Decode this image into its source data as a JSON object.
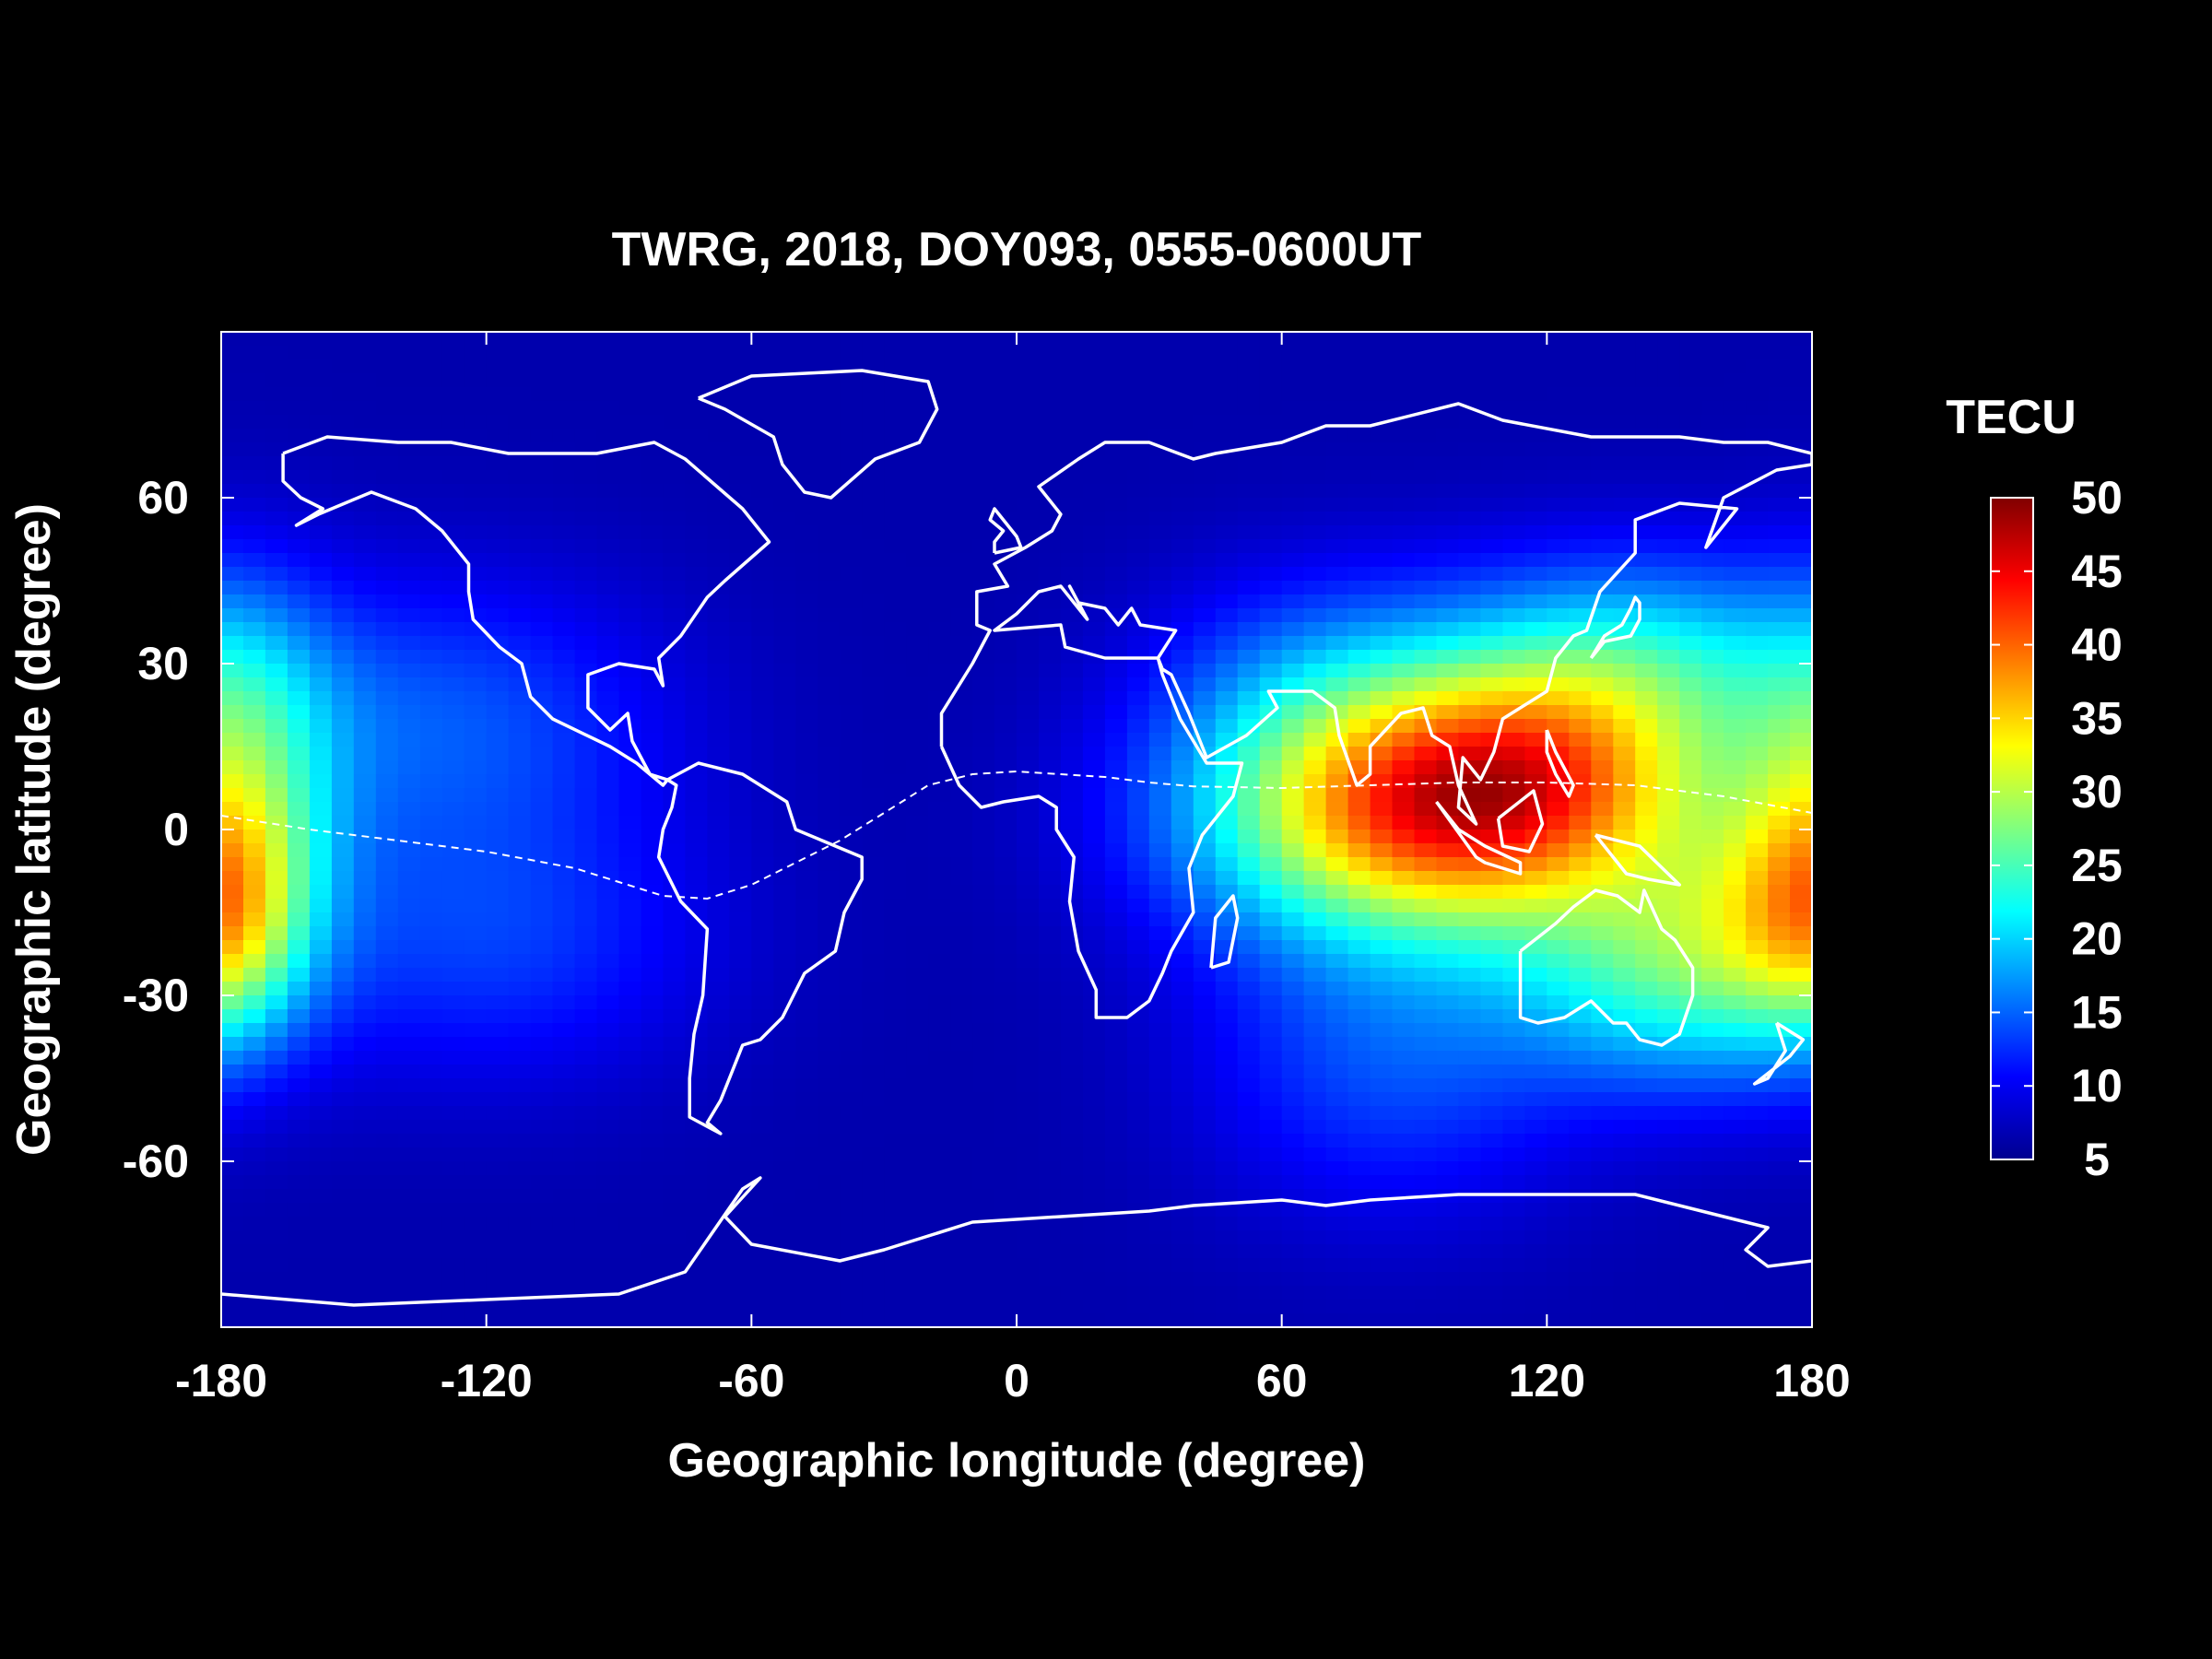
{
  "chart_data": {
    "type": "heatmap",
    "title": "TWRG, 2018, DOY093, 0555-0600UT",
    "xlabel": "Geographic longitude (degree)",
    "ylabel": "Geographic latitude (degree)",
    "xlim": [
      -180,
      180
    ],
    "ylim": [
      -90,
      90
    ],
    "xticks": [
      -180,
      -120,
      -60,
      0,
      60,
      120,
      180
    ],
    "yticks": [
      60,
      30,
      0,
      -30,
      -60
    ],
    "grid": false,
    "colorbar": {
      "label": "TECU",
      "min": 5,
      "max": 50,
      "ticks": [
        5,
        10,
        15,
        20,
        25,
        30,
        35,
        40,
        45,
        50
      ],
      "colormap": "jet",
      "placement": "right"
    },
    "magnetic_equator_dashed": [
      [
        -180,
        2.5
      ],
      [
        -160,
        0
      ],
      [
        -140,
        -2
      ],
      [
        -120,
        -4
      ],
      [
        -100,
        -7
      ],
      [
        -90,
        -9.5
      ],
      [
        -80,
        -12
      ],
      [
        -70,
        -12.5
      ],
      [
        -60,
        -10
      ],
      [
        -50,
        -6
      ],
      [
        -40,
        -2
      ],
      [
        -30,
        3
      ],
      [
        -20,
        8
      ],
      [
        -10,
        10
      ],
      [
        0,
        10.5
      ],
      [
        10,
        10
      ],
      [
        20,
        9.5
      ],
      [
        30,
        8.5
      ],
      [
        40,
        7.8
      ],
      [
        60,
        7.5
      ],
      [
        80,
        8
      ],
      [
        100,
        8.5
      ],
      [
        120,
        8.5
      ],
      [
        140,
        8
      ],
      [
        160,
        6
      ],
      [
        180,
        3
      ]
    ],
    "tec_enhancements": [
      {
        "lon": 90,
        "lat": 0,
        "value": 31,
        "lon_width": 35,
        "lat_width": 15
      },
      {
        "lon": 118,
        "lat": 10,
        "value": 26,
        "lon_width": 28,
        "lat_width": 14
      },
      {
        "lon": 140,
        "lat": 30,
        "value": 20,
        "lon_width": 30,
        "lat_width": 14
      },
      {
        "lon": 72,
        "lat": 22,
        "value": 17,
        "lon_width": 28,
        "lat_width": 16
      },
      {
        "lon": 145,
        "lat": -25,
        "value": 20,
        "lon_width": 25,
        "lat_width": 15
      },
      {
        "lon": 85,
        "lat": -40,
        "value": 14,
        "lon_width": 30,
        "lat_width": 20
      },
      {
        "lon": 170,
        "lat": -15,
        "value": 18,
        "lon_width": 20,
        "lat_width": 18
      },
      {
        "lon": -175,
        "lat": 10,
        "value": 19,
        "lon_width": 15,
        "lat_width": 22
      },
      {
        "lon": -178,
        "lat": -15,
        "value": 18,
        "lon_width": 12,
        "lat_width": 15
      },
      {
        "lon": -130,
        "lat": 20,
        "value": 14,
        "lon_width": 35,
        "lat_width": 18
      },
      {
        "lon": -120,
        "lat": -20,
        "value": 13,
        "lon_width": 35,
        "lat_width": 18
      }
    ],
    "background_tec": 7,
    "overlay": "coastlines"
  }
}
